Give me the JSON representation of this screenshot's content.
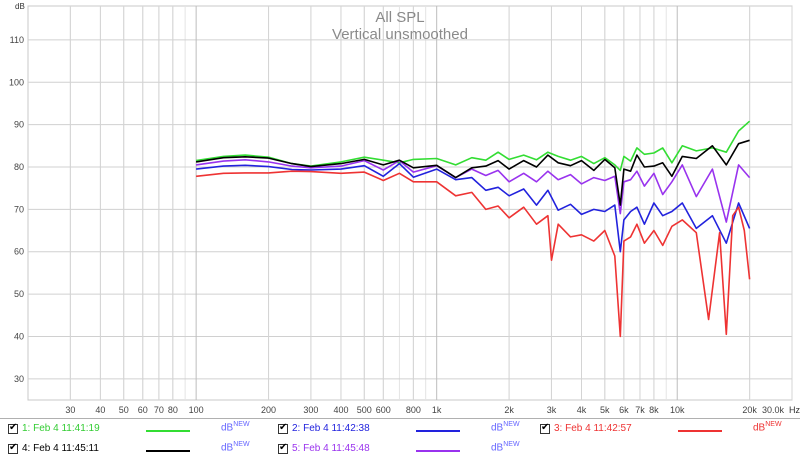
{
  "chart_data": {
    "type": "line",
    "title": "All SPL",
    "subtitle": "Vertical unsmoothed",
    "ylabel": "dB",
    "xlabel": "Hz",
    "x_scale": "log",
    "xlim": [
      20,
      30000
    ],
    "ylim": [
      25,
      118
    ],
    "grid": true,
    "legend_position": "bottom",
    "y_ticks": [
      30,
      40,
      50,
      60,
      70,
      80,
      90,
      100,
      110
    ],
    "y_tick_labels": [
      "30",
      "40",
      "50",
      "60",
      "70",
      "80",
      "90",
      "100",
      "110"
    ],
    "x_ticks": [
      30,
      40,
      50,
      60,
      70,
      80,
      100,
      200,
      300,
      400,
      500,
      600,
      800,
      1000,
      2000,
      3000,
      4000,
      5000,
      6000,
      7000,
      8000,
      10000,
      20000,
      30000
    ],
    "x_tick_labels": [
      "30",
      "40",
      "50",
      "60",
      "70",
      "80",
      "100",
      "200",
      "300",
      "400",
      "500",
      "600",
      "800",
      "1k",
      "2k",
      "3k",
      "4k",
      "5k",
      "6k",
      "7k",
      "8k",
      "10k",
      "20k",
      "30.0k"
    ],
    "x_unit_label": "Hz",
    "series": [
      {
        "name": "1: Feb 4 11:41:19",
        "color": "#33dd33",
        "x": [
          100,
          130,
          160,
          200,
          250,
          300,
          400,
          500,
          600,
          700,
          800,
          1000,
          1200,
          1400,
          1600,
          1800,
          2000,
          2300,
          2600,
          2900,
          3200,
          3600,
          4000,
          4500,
          5000,
          5500,
          5800,
          6000,
          6400,
          6800,
          7300,
          8000,
          8700,
          9500,
          10500,
          12000,
          14000,
          16000,
          18000,
          20000
        ],
        "y": [
          81.5,
          82.5,
          82.8,
          82.3,
          80.8,
          80.2,
          81.2,
          82.3,
          81.6,
          81,
          81.8,
          82,
          80.5,
          82.2,
          81.6,
          83.5,
          81.8,
          82.8,
          81.7,
          83.5,
          82.5,
          81.6,
          82.5,
          80.8,
          82.2,
          80.5,
          79.2,
          82.5,
          81.4,
          84.5,
          83,
          83.3,
          84.5,
          81,
          85,
          83.8,
          84.5,
          83.5,
          88.5,
          90.8
        ]
      },
      {
        "name": "2: Feb 4 11:42:38",
        "color": "#2222dd",
        "x": [
          100,
          130,
          160,
          200,
          250,
          300,
          400,
          500,
          600,
          700,
          800,
          1000,
          1200,
          1400,
          1600,
          1800,
          2000,
          2300,
          2600,
          2900,
          3200,
          3600,
          4000,
          4500,
          5000,
          5500,
          5800,
          6000,
          6400,
          6800,
          7300,
          8000,
          8700,
          9500,
          10500,
          12000,
          14000,
          16000,
          18000,
          20000
        ],
        "y": [
          79.5,
          80.2,
          80.4,
          80.1,
          79.4,
          79.3,
          79.5,
          80.3,
          77.8,
          80.8,
          77.6,
          79.5,
          77,
          77.5,
          74.5,
          75.2,
          73.2,
          74.8,
          71,
          74.5,
          69.8,
          71.2,
          68.8,
          70,
          69.5,
          71,
          60,
          67.5,
          69.5,
          70.5,
          66.5,
          71.5,
          68.5,
          69.5,
          71.5,
          65.5,
          68.5,
          62,
          71.5,
          65.5
        ]
      },
      {
        "name": "3: Feb 4 11:42:57",
        "color": "#ee3333",
        "x": [
          100,
          130,
          160,
          200,
          250,
          300,
          400,
          500,
          600,
          700,
          800,
          1000,
          1200,
          1400,
          1600,
          1800,
          2000,
          2300,
          2600,
          2900,
          3000,
          3200,
          3600,
          4000,
          4500,
          5000,
          5500,
          5800,
          6000,
          6400,
          6800,
          7300,
          8000,
          8700,
          9500,
          10500,
          12000,
          13500,
          15000,
          16000,
          17000,
          18000,
          19000,
          20000
        ],
        "y": [
          77.8,
          78.5,
          78.6,
          78.6,
          79,
          78.9,
          78.5,
          78.8,
          76.8,
          78.5,
          76.5,
          76.5,
          73.2,
          74,
          70,
          70.8,
          68,
          70.5,
          66.5,
          68.5,
          58,
          66.5,
          63.5,
          64,
          62.5,
          65,
          59,
          40,
          62.5,
          63.5,
          66.5,
          62,
          65,
          61.5,
          66,
          67.5,
          64.5,
          44,
          64.5,
          40.5,
          68.5,
          70.5,
          65,
          53.5
        ]
      },
      {
        "name": "4: Feb 4 11:45:11",
        "color": "#000000",
        "x": [
          100,
          130,
          160,
          200,
          250,
          300,
          400,
          500,
          600,
          700,
          800,
          1000,
          1200,
          1400,
          1600,
          1800,
          2000,
          2300,
          2600,
          2900,
          3200,
          3600,
          4000,
          4500,
          5000,
          5500,
          5800,
          6000,
          6400,
          6800,
          7300,
          8000,
          8700,
          9500,
          10500,
          12000,
          14000,
          16000,
          18000,
          20000
        ],
        "y": [
          81.2,
          82.2,
          82.4,
          82.1,
          80.8,
          80.1,
          80.8,
          81.8,
          80.5,
          81.6,
          79.8,
          80.4,
          77.5,
          79.8,
          80.2,
          81.5,
          79.5,
          81.5,
          80,
          82.8,
          81,
          80.3,
          81.5,
          79.2,
          81.8,
          79.8,
          71,
          79.5,
          79,
          82.8,
          80,
          80.2,
          81,
          77.8,
          82.5,
          82,
          85,
          80.5,
          85.5,
          86.3
        ]
      },
      {
        "name": "5: Feb 4 11:45:48",
        "color": "#9933ee",
        "x": [
          100,
          130,
          160,
          200,
          250,
          300,
          400,
          500,
          600,
          700,
          800,
          1000,
          1200,
          1400,
          1600,
          1800,
          2000,
          2300,
          2600,
          2900,
          3200,
          3600,
          4000,
          4500,
          5000,
          5500,
          5800,
          6000,
          6400,
          6800,
          7300,
          8000,
          8700,
          9500,
          10500,
          12000,
          14000,
          16000,
          18000,
          20000
        ],
        "y": [
          80.5,
          81.4,
          81.7,
          81.2,
          80.2,
          79.8,
          80.2,
          81.5,
          79.3,
          81.5,
          78.8,
          80.3,
          77.5,
          79.5,
          78,
          79.2,
          76.5,
          78.5,
          76.5,
          79,
          77,
          78.2,
          76,
          77.5,
          76.8,
          77.8,
          69,
          76.5,
          77,
          79,
          75.5,
          78.5,
          73.5,
          76.5,
          80.5,
          73,
          79.5,
          67,
          80.5,
          77.5
        ]
      }
    ]
  },
  "legend": {
    "unit": "dB",
    "unit_sup": "NEW",
    "items": [
      {
        "label": "1: Feb 4 11:41:19",
        "color": "#33dd33",
        "text_color": "#33cc33",
        "unit_color": "#6666ff"
      },
      {
        "label": "2: Feb 4 11:42:38",
        "color": "#2222dd",
        "text_color": "#2222dd",
        "unit_color": "#6666ff"
      },
      {
        "label": "3: Feb 4 11:42:57",
        "color": "#ee3333",
        "text_color": "#ee3333",
        "unit_color": "#ee3333"
      },
      {
        "label": "4: Feb 4 11:45:11",
        "color": "#000000",
        "text_color": "#000000",
        "unit_color": "#6666ff"
      },
      {
        "label": "5: Feb 4 11:45:48",
        "color": "#9933ee",
        "text_color": "#9933ee",
        "unit_color": "#6666ff"
      }
    ]
  }
}
